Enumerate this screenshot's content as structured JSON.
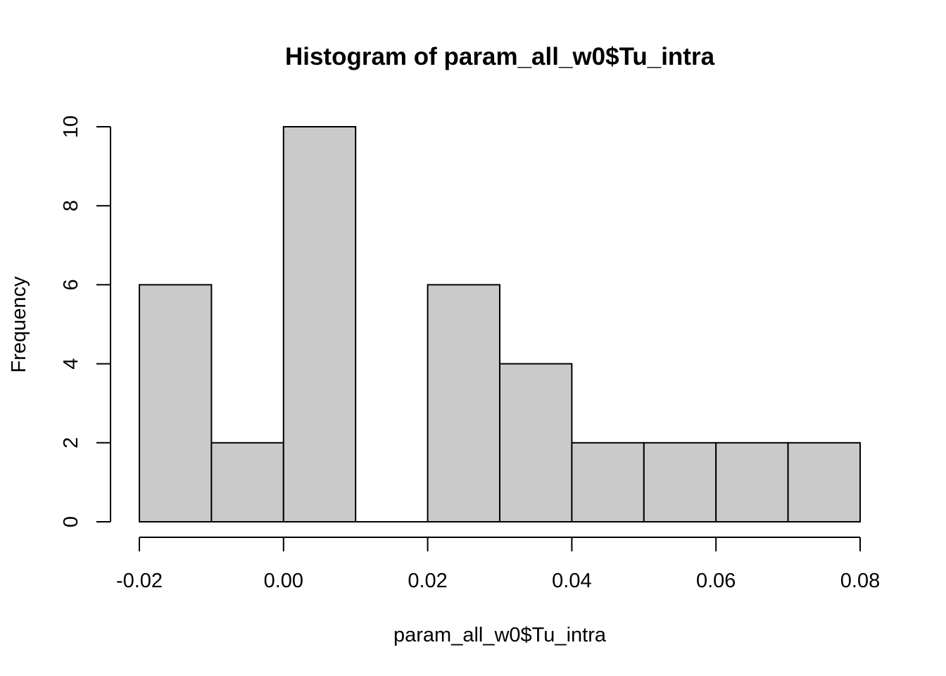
{
  "chart_data": {
    "type": "bar",
    "title": "Histogram of param_all_w0$Tu_intra",
    "xlabel": "param_all_w0$Tu_intra",
    "ylabel": "Frequency",
    "bin_edges": [
      -0.02,
      -0.01,
      0.0,
      0.01,
      0.02,
      0.03,
      0.04,
      0.05,
      0.06,
      0.07,
      0.08
    ],
    "values": [
      6,
      2,
      10,
      0,
      6,
      4,
      2,
      2,
      2,
      2
    ],
    "xlim": [
      -0.02,
      0.08
    ],
    "ylim": [
      0,
      10
    ],
    "x_ticks": [
      -0.02,
      0.0,
      0.02,
      0.04,
      0.06,
      0.08
    ],
    "x_tick_labels": [
      "-0.02",
      "0.00",
      "0.02",
      "0.04",
      "0.06",
      "0.08"
    ],
    "y_ticks": [
      0,
      2,
      4,
      6,
      8,
      10
    ],
    "y_tick_labels": [
      "0",
      "2",
      "4",
      "6",
      "8",
      "10"
    ],
    "bar_color": "#cacaca",
    "grid": false
  }
}
